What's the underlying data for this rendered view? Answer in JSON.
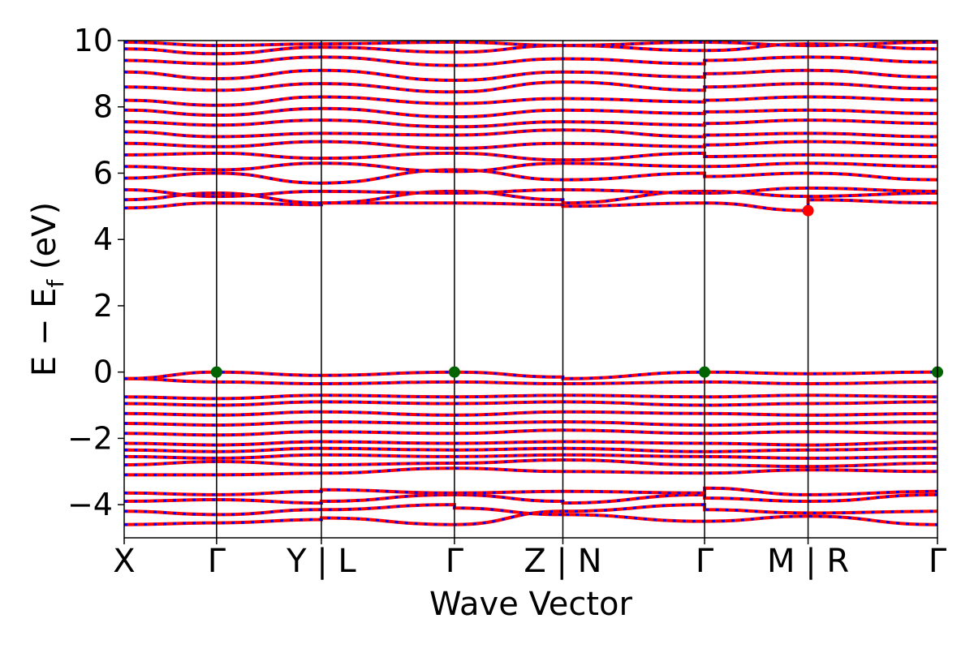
{
  "chart_data": {
    "type": "line",
    "title": "",
    "xlabel": "Wave Vector",
    "ylabel_main": "E − E",
    "ylabel_sub": "f",
    "ylabel_unit": " (eV)",
    "ylim": [
      -5,
      10
    ],
    "yticks": [
      {
        "value": -4,
        "label": "−4"
      },
      {
        "value": -2,
        "label": "−2"
      },
      {
        "value": 0,
        "label": "0"
      },
      {
        "value": 2,
        "label": "2"
      },
      {
        "value": 4,
        "label": "4"
      },
      {
        "value": 6,
        "label": "6"
      },
      {
        "value": 8,
        "label": "8"
      },
      {
        "value": 10,
        "label": "10"
      }
    ],
    "xlim": [
      0,
      6.6
    ],
    "kpoints": [
      {
        "x": 0.0,
        "label": "X"
      },
      {
        "x": 0.75,
        "label": "Γ"
      },
      {
        "x": 1.6,
        "label": "Y | L"
      },
      {
        "x": 2.68,
        "label": "Γ"
      },
      {
        "x": 3.56,
        "label": "Z | N"
      },
      {
        "x": 4.71,
        "label": "Γ"
      },
      {
        "x": 5.55,
        "label": "M | R"
      },
      {
        "x": 6.6,
        "label": "Γ"
      }
    ],
    "series_colors": {
      "spin_up": "#ff0000",
      "spin_down": "#0000ff"
    },
    "vbm_points": [
      {
        "x": 0.75,
        "y": 0.0
      },
      {
        "x": 2.68,
        "y": 0.0
      },
      {
        "x": 4.71,
        "y": 0.0
      },
      {
        "x": 6.6,
        "y": 0.0
      }
    ],
    "cbm_points": [
      {
        "x": 5.55,
        "y": 4.87
      }
    ],
    "vbm_color": "#006400",
    "cbm_color": "#ff0000",
    "bands": [
      {
        "segments": [
          [
            -4.6,
            -4.55
          ],
          [
            -4.55,
            -4.45
          ],
          [
            -4.4,
            -4.6
          ],
          [
            -4.6,
            -4.2
          ],
          [
            -4.3,
            -4.5
          ],
          [
            -4.5,
            -4.35
          ],
          [
            -4.35,
            -4.6
          ]
        ]
      },
      {
        "segments": [
          [
            -4.2,
            -4.3
          ],
          [
            -4.3,
            -4.15
          ],
          [
            -4.15,
            -4.0
          ],
          [
            -4.1,
            -4.3
          ],
          [
            -4.2,
            -4.0
          ],
          [
            -4.15,
            -4.25
          ],
          [
            -4.25,
            -4.2
          ]
        ]
      },
      {
        "segments": [
          [
            -3.9,
            -3.85
          ],
          [
            -3.85,
            -3.95
          ],
          [
            -3.9,
            -3.7
          ],
          [
            -3.7,
            -3.9
          ],
          [
            -3.95,
            -3.7
          ],
          [
            -3.8,
            -3.9
          ],
          [
            -3.9,
            -3.7
          ]
        ]
      },
      {
        "segments": [
          [
            -3.65,
            -3.7
          ],
          [
            -3.7,
            -3.6
          ],
          [
            -3.55,
            -3.65
          ],
          [
            -3.65,
            -3.6
          ],
          [
            -3.6,
            -3.65
          ],
          [
            -3.5,
            -3.7
          ],
          [
            -3.7,
            -3.6
          ]
        ]
      },
      {
        "segments": [
          [
            -3.1,
            -3.1
          ],
          [
            -3.1,
            -3.05
          ],
          [
            -3.05,
            -2.9
          ],
          [
            -2.9,
            -3.0
          ],
          [
            -3.0,
            -3.05
          ],
          [
            -3.05,
            -2.95
          ],
          [
            -2.95,
            -3.0
          ]
        ]
      },
      {
        "segments": [
          [
            -2.8,
            -2.7
          ],
          [
            -2.7,
            -2.8
          ],
          [
            -2.8,
            -2.75
          ],
          [
            -2.75,
            -2.65
          ],
          [
            -2.65,
            -2.8
          ],
          [
            -2.8,
            -2.85
          ],
          [
            -2.85,
            -2.75
          ]
        ]
      },
      {
        "segments": [
          [
            -2.55,
            -2.6
          ],
          [
            -2.6,
            -2.5
          ],
          [
            -2.5,
            -2.55
          ],
          [
            -2.55,
            -2.5
          ],
          [
            -2.5,
            -2.55
          ],
          [
            -2.55,
            -2.6
          ],
          [
            -2.6,
            -2.55
          ]
        ]
      },
      {
        "segments": [
          [
            -2.35,
            -2.4
          ],
          [
            -2.4,
            -2.3
          ],
          [
            -2.3,
            -2.35
          ],
          [
            -2.35,
            -2.3
          ],
          [
            -2.3,
            -2.4
          ],
          [
            -2.4,
            -2.35
          ],
          [
            -2.35,
            -2.3
          ]
        ]
      },
      {
        "segments": [
          [
            -2.15,
            -2.2
          ],
          [
            -2.2,
            -2.1
          ],
          [
            -2.1,
            -2.15
          ],
          [
            -2.15,
            -2.1
          ],
          [
            -2.1,
            -2.15
          ],
          [
            -2.15,
            -2.2
          ],
          [
            -2.2,
            -2.1
          ]
        ]
      },
      {
        "segments": [
          [
            -1.85,
            -1.9
          ],
          [
            -1.9,
            -1.8
          ],
          [
            -1.8,
            -1.85
          ],
          [
            -1.85,
            -1.75
          ],
          [
            -1.75,
            -1.85
          ],
          [
            -1.85,
            -1.8
          ],
          [
            -1.8,
            -1.85
          ]
        ]
      },
      {
        "segments": [
          [
            -1.55,
            -1.6
          ],
          [
            -1.6,
            -1.5
          ],
          [
            -1.5,
            -1.55
          ],
          [
            -1.55,
            -1.5
          ],
          [
            -1.5,
            -1.6
          ],
          [
            -1.6,
            -1.55
          ],
          [
            -1.55,
            -1.5
          ]
        ]
      },
      {
        "segments": [
          [
            -1.25,
            -1.3
          ],
          [
            -1.3,
            -1.2
          ],
          [
            -1.2,
            -1.3
          ],
          [
            -1.3,
            -1.2
          ],
          [
            -1.2,
            -1.25
          ],
          [
            -1.25,
            -1.3
          ],
          [
            -1.3,
            -1.25
          ]
        ]
      },
      {
        "segments": [
          [
            -0.95,
            -1.0
          ],
          [
            -1.0,
            -0.9
          ],
          [
            -0.9,
            -0.95
          ],
          [
            -0.95,
            -0.9
          ],
          [
            -0.9,
            -1.0
          ],
          [
            -1.0,
            -0.95
          ],
          [
            -0.95,
            -0.9
          ]
        ]
      },
      {
        "segments": [
          [
            -0.75,
            -0.8
          ],
          [
            -0.8,
            -0.7
          ],
          [
            -0.7,
            -0.75
          ],
          [
            -0.75,
            -0.7
          ],
          [
            -0.7,
            -0.75
          ],
          [
            -0.75,
            -0.7
          ],
          [
            -0.7,
            -0.75
          ]
        ]
      },
      {
        "segments": [
          [
            -0.2,
            -0.3
          ],
          [
            -0.3,
            -0.35
          ],
          [
            -0.35,
            -0.3
          ],
          [
            -0.3,
            -0.35
          ],
          [
            -0.35,
            -0.3
          ],
          [
            -0.3,
            -0.35
          ],
          [
            -0.35,
            -0.3
          ]
        ]
      },
      {
        "segments": [
          [
            -0.2,
            0.0
          ],
          [
            0.0,
            -0.1
          ],
          [
            -0.1,
            0.0
          ],
          [
            0.0,
            -0.15
          ],
          [
            -0.2,
            0.0
          ],
          [
            0.0,
            -0.05
          ],
          [
            -0.05,
            0.0
          ]
        ]
      },
      {
        "segments": [
          [
            4.95,
            5.1
          ],
          [
            5.1,
            5.05
          ],
          [
            5.1,
            5.1
          ],
          [
            5.1,
            5.05
          ],
          [
            5.0,
            5.1
          ],
          [
            5.1,
            4.87
          ],
          [
            5.2,
            5.1
          ]
        ]
      },
      {
        "segments": [
          [
            5.2,
            5.4
          ],
          [
            5.4,
            5.1
          ],
          [
            5.1,
            5.45
          ],
          [
            5.45,
            5.2
          ],
          [
            5.1,
            5.45
          ],
          [
            5.45,
            5.3
          ],
          [
            5.3,
            5.4
          ]
        ]
      },
      {
        "segments": [
          [
            5.5,
            5.3
          ],
          [
            5.3,
            5.45
          ],
          [
            5.45,
            5.4
          ],
          [
            5.4,
            5.5
          ],
          [
            5.5,
            5.4
          ],
          [
            5.4,
            5.55
          ],
          [
            5.55,
            5.45
          ]
        ]
      },
      {
        "segments": [
          [
            5.85,
            6.0
          ],
          [
            6.0,
            5.7
          ],
          [
            5.7,
            6.1
          ],
          [
            6.1,
            5.8
          ],
          [
            5.8,
            6.0
          ],
          [
            5.9,
            6.0
          ],
          [
            6.0,
            5.8
          ]
        ]
      },
      {
        "segments": [
          [
            6.2,
            6.1
          ],
          [
            6.1,
            6.3
          ],
          [
            6.3,
            6.05
          ],
          [
            6.05,
            6.3
          ],
          [
            6.3,
            6.2
          ],
          [
            6.2,
            6.3
          ],
          [
            6.3,
            6.2
          ]
        ]
      },
      {
        "segments": [
          [
            6.55,
            6.6
          ],
          [
            6.6,
            6.45
          ],
          [
            6.45,
            6.6
          ],
          [
            6.6,
            6.4
          ],
          [
            6.4,
            6.6
          ],
          [
            6.5,
            6.55
          ],
          [
            6.55,
            6.5
          ]
        ]
      },
      {
        "segments": [
          [
            6.9,
            6.8
          ],
          [
            6.8,
            6.95
          ],
          [
            6.95,
            6.75
          ],
          [
            6.75,
            6.9
          ],
          [
            6.9,
            6.8
          ],
          [
            6.85,
            6.95
          ],
          [
            6.95,
            6.85
          ]
        ]
      },
      {
        "segments": [
          [
            7.25,
            7.1
          ],
          [
            7.1,
            7.2
          ],
          [
            7.2,
            7.15
          ],
          [
            7.15,
            7.3
          ],
          [
            7.3,
            7.1
          ],
          [
            7.15,
            7.2
          ],
          [
            7.2,
            7.1
          ]
        ]
      },
      {
        "segments": [
          [
            7.55,
            7.45
          ],
          [
            7.45,
            7.6
          ],
          [
            7.6,
            7.4
          ],
          [
            7.4,
            7.55
          ],
          [
            7.55,
            7.45
          ],
          [
            7.5,
            7.6
          ],
          [
            7.6,
            7.5
          ]
        ]
      },
      {
        "segments": [
          [
            7.9,
            7.75
          ],
          [
            7.75,
            7.95
          ],
          [
            7.95,
            7.7
          ],
          [
            7.7,
            7.9
          ],
          [
            7.9,
            7.8
          ],
          [
            7.85,
            7.9
          ],
          [
            7.9,
            7.8
          ]
        ]
      },
      {
        "segments": [
          [
            8.2,
            8.05
          ],
          [
            8.05,
            8.3
          ],
          [
            8.3,
            8.1
          ],
          [
            8.1,
            8.25
          ],
          [
            8.25,
            8.15
          ],
          [
            8.2,
            8.3
          ],
          [
            8.3,
            8.2
          ]
        ]
      },
      {
        "segments": [
          [
            8.6,
            8.5
          ],
          [
            8.5,
            8.7
          ],
          [
            8.7,
            8.45
          ],
          [
            8.45,
            8.75
          ],
          [
            8.75,
            8.5
          ],
          [
            8.6,
            8.7
          ],
          [
            8.7,
            8.55
          ]
        ]
      },
      {
        "segments": [
          [
            9.05,
            8.85
          ],
          [
            8.85,
            9.1
          ],
          [
            9.1,
            8.8
          ],
          [
            8.8,
            9.05
          ],
          [
            9.05,
            8.9
          ],
          [
            9.0,
            9.1
          ],
          [
            9.1,
            8.9
          ]
        ]
      },
      {
        "segments": [
          [
            9.4,
            9.3
          ],
          [
            9.3,
            9.5
          ],
          [
            9.5,
            9.25
          ],
          [
            9.25,
            9.45
          ],
          [
            9.45,
            9.3
          ],
          [
            9.4,
            9.5
          ],
          [
            9.5,
            9.35
          ]
        ]
      },
      {
        "segments": [
          [
            9.75,
            9.6
          ],
          [
            9.6,
            9.8
          ],
          [
            9.8,
            9.65
          ],
          [
            9.65,
            9.85
          ],
          [
            9.85,
            9.7
          ],
          [
            9.7,
            9.9
          ],
          [
            9.9,
            9.75
          ]
        ]
      },
      {
        "segments": [
          [
            9.95,
            9.85
          ],
          [
            9.85,
            9.9
          ],
          [
            9.9,
            9.95
          ],
          [
            9.95,
            9.85
          ],
          [
            9.85,
            9.95
          ],
          [
            9.95,
            9.85
          ],
          [
            9.85,
            9.95
          ]
        ]
      }
    ]
  }
}
